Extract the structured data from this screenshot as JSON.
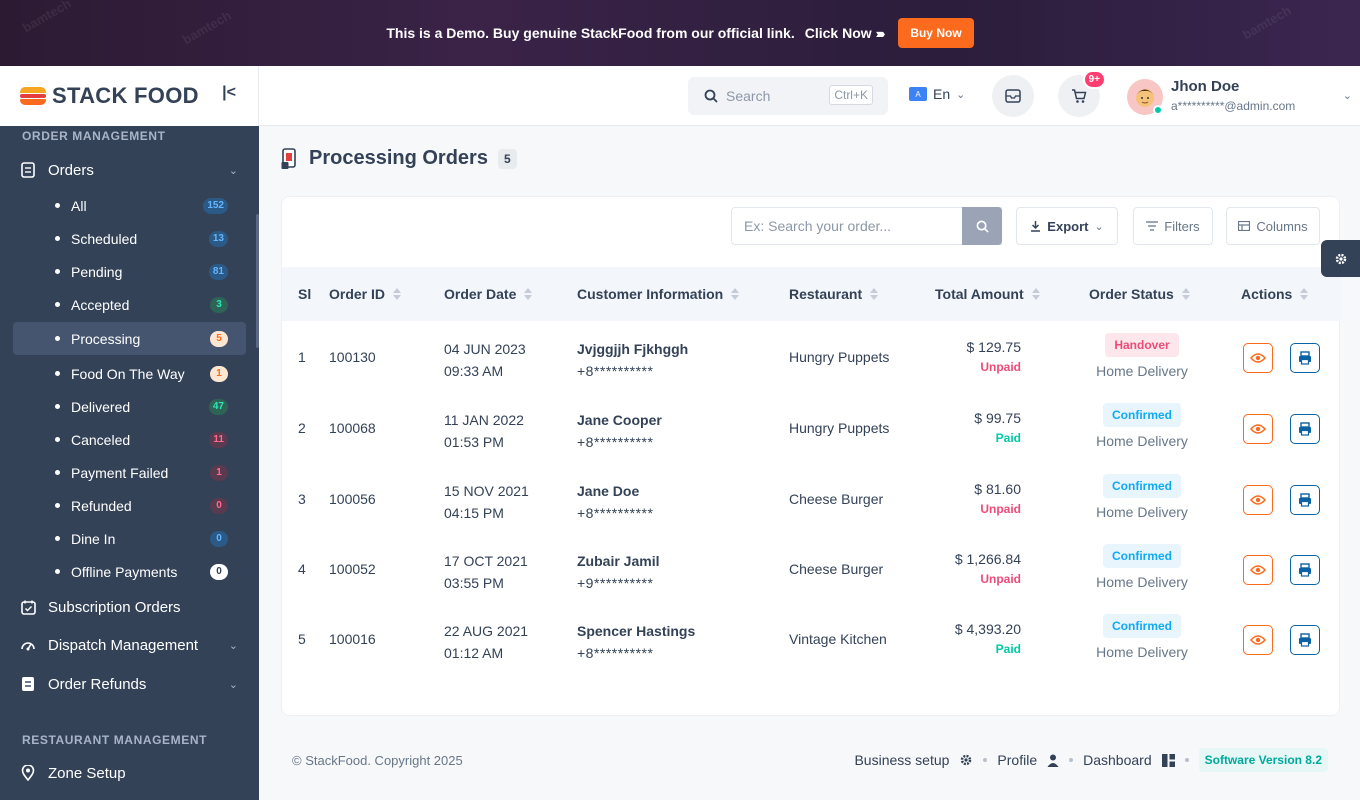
{
  "banner": {
    "message": "This is a Demo. Buy genuine StackFood from our official link.",
    "click_now": "Click Now",
    "arrows": "›››››",
    "buy_now": "Buy Now",
    "watermark": "bamtech"
  },
  "brand": {
    "name": "STACK FOOD",
    "collapse_icon": "|<"
  },
  "sidebar": {
    "section_order": "ORDER MANAGEMENT",
    "orders_label": "Orders",
    "sub_items": [
      {
        "label": "All",
        "count": "152"
      },
      {
        "label": "Scheduled",
        "count": "13"
      },
      {
        "label": "Pending",
        "count": "81"
      },
      {
        "label": "Accepted",
        "count": "3"
      },
      {
        "label": "Processing",
        "count": "5"
      },
      {
        "label": "Food On The Way",
        "count": "1"
      },
      {
        "label": "Delivered",
        "count": "47"
      },
      {
        "label": "Canceled",
        "count": "11"
      },
      {
        "label": "Payment Failed",
        "count": "1"
      },
      {
        "label": "Refunded",
        "count": "0"
      },
      {
        "label": "Dine In",
        "count": "0"
      },
      {
        "label": "Offline Payments",
        "count": "0"
      }
    ],
    "subscription_orders": "Subscription Orders",
    "dispatch_management": "Dispatch Management",
    "order_refunds": "Order Refunds",
    "section_restaurant": "RESTAURANT MANAGEMENT",
    "zone_setup": "Zone Setup"
  },
  "header": {
    "search_placeholder": "Search",
    "search_shortcut": "Ctrl+K",
    "language": "En",
    "cart_badge": "9+",
    "user_name": "Jhon Doe",
    "user_email": "a**********@admin.com"
  },
  "page": {
    "title": "Processing Orders",
    "count": "5"
  },
  "toolbar": {
    "search_placeholder": "Ex: Search your order...",
    "export": "Export",
    "filters": "Filters",
    "columns": "Columns"
  },
  "table": {
    "headers": [
      "Sl",
      "Order ID",
      "Order Date",
      "Customer Information",
      "Restaurant",
      "Total Amount",
      "Order Status",
      "Actions"
    ],
    "rows": [
      {
        "sl": "1",
        "id": "100130",
        "date": "04 JUN 2023",
        "time": "09:33 AM",
        "customer": "Jvjggjjh Fjkhggh",
        "phone": "+8**********",
        "restaurant": "Hungry Puppets",
        "amount": "$ 129.75",
        "payment": "Unpaid",
        "status": "Handover",
        "delivery": "Home Delivery"
      },
      {
        "sl": "2",
        "id": "100068",
        "date": "11 JAN 2022",
        "time": "01:53 PM",
        "customer": "Jane Cooper",
        "phone": "+8**********",
        "restaurant": "Hungry Puppets",
        "amount": "$ 99.75",
        "payment": "Paid",
        "status": "Confirmed",
        "delivery": "Home Delivery"
      },
      {
        "sl": "3",
        "id": "100056",
        "date": "15 NOV 2021",
        "time": "04:15 PM",
        "customer": "Jane Doe",
        "phone": "+8**********",
        "restaurant": "Cheese Burger",
        "amount": "$ 81.60",
        "payment": "Unpaid",
        "status": "Confirmed",
        "delivery": "Home Delivery"
      },
      {
        "sl": "4",
        "id": "100052",
        "date": "17 OCT 2021",
        "time": "03:55 PM",
        "customer": "Zubair Jamil",
        "phone": "+9**********",
        "restaurant": "Cheese Burger",
        "amount": "$ 1,266.84",
        "payment": "Unpaid",
        "status": "Confirmed",
        "delivery": "Home Delivery"
      },
      {
        "sl": "5",
        "id": "100016",
        "date": "22 AUG 2021",
        "time": "01:12 AM",
        "customer": "Spencer Hastings",
        "phone": "+8**********",
        "restaurant": "Vintage Kitchen",
        "amount": "$ 4,393.20",
        "payment": "Paid",
        "status": "Confirmed",
        "delivery": "Home Delivery"
      }
    ]
  },
  "footer": {
    "copyright": "© StackFood. Copyright 2025",
    "business_setup": "Business setup",
    "profile": "Profile",
    "dashboard": "Dashboard",
    "version": "Software Version 8.2"
  },
  "colors": {
    "accent": "#fc6a1d",
    "sidebar_bg": "#334257",
    "paid": "#00c9a7",
    "unpaid": "#ed4c78",
    "handover_bg": "#fde7ec",
    "handover_text": "#ed4c78",
    "confirmed_bg": "#e8f5fd",
    "confirmed_text": "#0faaf5"
  },
  "icons": {
    "search": "search-icon",
    "language": "translate-icon",
    "message": "message-icon",
    "cart": "cart-icon",
    "settings": "gear-icon",
    "view": "eye-icon",
    "print": "print-icon"
  }
}
